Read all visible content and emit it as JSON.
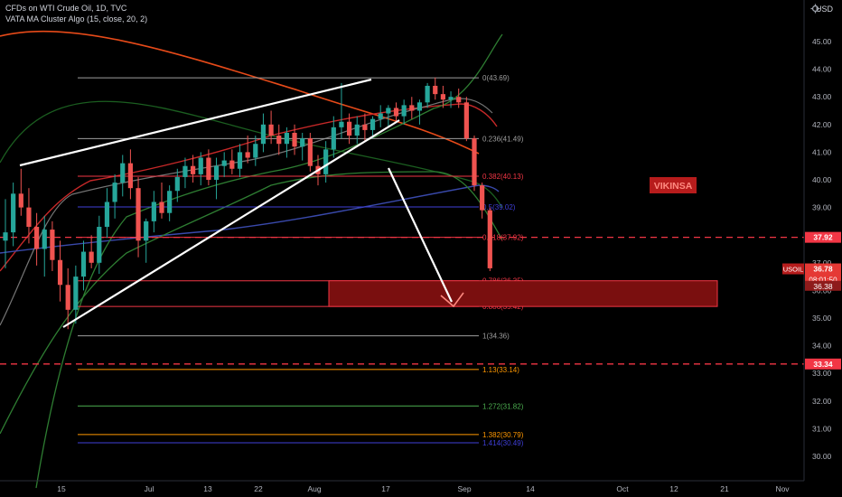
{
  "header": {
    "title": "CFDs on WTI Crude Oil, 1D, TVC",
    "indicator": "VATA MA Cluster Algo (15, close, 20, 2)"
  },
  "axis_unit": "USD",
  "watermark": "VIKINSA",
  "price_tag": {
    "symbol": "USOIL",
    "price": "36.78",
    "countdown": "08:01:50",
    "low_box": "36.38"
  },
  "colors": {
    "up": "#26a69a",
    "down": "#ef5350",
    "background": "#000000",
    "fib_red": "#f23645",
    "fib_blue": "#3f3fd7",
    "fib_gray": "#9e9e9e",
    "fib_green": "#4caf50",
    "fib_orange": "#ff9800",
    "zone": "#7a0f0f"
  },
  "chart_data": {
    "type": "candlestick",
    "yaxis": {
      "ticks": [
        "30.00",
        "31.00",
        "32.00",
        "33.00",
        "34.00",
        "35.00",
        "36.00",
        "37.00",
        "38.00",
        "39.00",
        "40.00",
        "41.00",
        "42.00",
        "43.00",
        "44.00",
        "45.00"
      ],
      "ylim": [
        29.2,
        46.4
      ]
    },
    "xaxis": {
      "tick_labels": [
        "15",
        "Jul",
        "13",
        "22",
        "Aug",
        "17",
        "Sep",
        "14",
        "Oct",
        "12",
        "21",
        "Nov"
      ]
    },
    "highlighted_levels": [
      {
        "label": "37.92",
        "value": 37.92
      },
      {
        "label": "33.34",
        "value": 33.34
      }
    ],
    "fib_levels": [
      {
        "label": "0(43.69)",
        "value": 43.69,
        "color": "fib_gray"
      },
      {
        "label": "0.236(41.49)",
        "value": 41.49,
        "color": "fib_gray"
      },
      {
        "label": "0.382(40.13)",
        "value": 40.13,
        "color": "fib_red"
      },
      {
        "label": "0.5(39.02)",
        "value": 39.02,
        "color": "fib_blue"
      },
      {
        "label": "0.618(37.92)",
        "value": 37.92,
        "color": "fib_red"
      },
      {
        "label": "0.786(36.35)",
        "value": 36.35,
        "color": "fib_red"
      },
      {
        "label": "0.886(35.42)",
        "value": 35.42,
        "color": "fib_red"
      },
      {
        "label": "1(34.36)",
        "value": 34.36,
        "color": "fib_gray"
      },
      {
        "label": "1.13(33.14)",
        "value": 33.14,
        "color": "fib_orange"
      },
      {
        "label": "1.272(31.82)",
        "value": 31.82,
        "color": "fib_green"
      },
      {
        "label": "1.382(30.79)",
        "value": 30.79,
        "color": "fib_orange"
      },
      {
        "label": "1.414(30.49)",
        "value": 30.49,
        "color": "fib_blue"
      }
    ],
    "candles": [
      [
        37.8,
        39.3,
        36.8,
        38.1
      ],
      [
        38.1,
        39.9,
        37.6,
        39.5
      ],
      [
        39.5,
        40.4,
        38.7,
        39.0
      ],
      [
        39.0,
        39.7,
        37.7,
        38.3
      ],
      [
        38.3,
        38.8,
        36.9,
        37.5
      ],
      [
        37.5,
        38.7,
        36.5,
        38.2
      ],
      [
        38.2,
        38.5,
        36.7,
        37.1
      ],
      [
        37.1,
        37.8,
        35.6,
        36.2
      ],
      [
        36.2,
        36.8,
        34.6,
        35.3
      ],
      [
        35.3,
        36.9,
        34.8,
        36.5
      ],
      [
        36.5,
        37.8,
        36.0,
        37.4
      ],
      [
        37.4,
        38.0,
        36.8,
        37.0
      ],
      [
        37.0,
        38.7,
        36.6,
        38.3
      ],
      [
        38.3,
        39.7,
        37.9,
        39.2
      ],
      [
        39.2,
        40.2,
        38.6,
        39.9
      ],
      [
        39.9,
        40.9,
        39.4,
        40.6
      ],
      [
        40.6,
        41.1,
        39.3,
        39.7
      ],
      [
        39.7,
        40.1,
        37.2,
        37.8
      ],
      [
        37.8,
        38.6,
        37.0,
        38.5
      ],
      [
        38.5,
        39.6,
        38.1,
        39.2
      ],
      [
        39.2,
        39.9,
        38.6,
        38.8
      ],
      [
        38.8,
        39.8,
        38.5,
        39.6
      ],
      [
        39.6,
        40.4,
        39.2,
        40.1
      ],
      [
        40.1,
        40.8,
        39.7,
        40.5
      ],
      [
        40.5,
        40.9,
        39.9,
        40.2
      ],
      [
        40.2,
        41.0,
        39.8,
        40.8
      ],
      [
        40.8,
        41.1,
        39.8,
        40.0
      ],
      [
        40.0,
        40.8,
        39.3,
        40.5
      ],
      [
        40.5,
        41.0,
        40.1,
        40.7
      ],
      [
        40.7,
        41.1,
        40.2,
        40.4
      ],
      [
        40.4,
        41.3,
        40.1,
        41.0
      ],
      [
        41.0,
        41.6,
        40.6,
        40.8
      ],
      [
        40.8,
        41.6,
        40.5,
        41.3
      ],
      [
        41.3,
        42.4,
        41.0,
        42.0
      ],
      [
        42.0,
        42.5,
        41.3,
        41.6
      ],
      [
        41.6,
        42.0,
        40.9,
        41.3
      ],
      [
        41.3,
        41.9,
        40.8,
        41.7
      ],
      [
        41.7,
        42.0,
        40.9,
        41.2
      ],
      [
        41.2,
        41.7,
        40.7,
        41.5
      ],
      [
        41.5,
        41.7,
        40.3,
        40.5
      ],
      [
        40.5,
        40.9,
        39.8,
        40.2
      ],
      [
        40.2,
        41.4,
        39.9,
        41.1
      ],
      [
        41.1,
        42.3,
        40.8,
        41.9
      ],
      [
        41.9,
        43.5,
        41.5,
        42.1
      ],
      [
        42.1,
        42.4,
        41.3,
        41.6
      ],
      [
        41.6,
        42.3,
        41.3,
        42.0
      ],
      [
        42.0,
        42.4,
        41.4,
        41.8
      ],
      [
        41.8,
        42.3,
        41.5,
        42.2
      ],
      [
        42.2,
        42.7,
        41.9,
        42.4
      ],
      [
        42.4,
        42.7,
        41.9,
        42.6
      ],
      [
        42.6,
        42.8,
        42.1,
        42.3
      ],
      [
        42.3,
        42.9,
        42.0,
        42.7
      ],
      [
        42.7,
        43.0,
        42.2,
        42.5
      ],
      [
        42.5,
        42.9,
        42.0,
        42.8
      ],
      [
        42.8,
        43.5,
        42.6,
        43.4
      ],
      [
        43.4,
        43.7,
        42.9,
        43.1
      ],
      [
        43.1,
        43.4,
        42.6,
        42.9
      ],
      [
        42.9,
        43.2,
        42.6,
        43.0
      ],
      [
        43.0,
        43.3,
        42.6,
        42.8
      ],
      [
        42.8,
        43.0,
        41.4,
        41.5
      ],
      [
        41.5,
        41.6,
        39.6,
        39.8
      ],
      [
        39.8,
        39.9,
        38.6,
        38.9
      ],
      [
        38.9,
        39.0,
        36.7,
        36.8
      ]
    ],
    "ma_overlays": [
      "green band",
      "red MA",
      "orange MA",
      "blue MA",
      "gray MA"
    ]
  }
}
